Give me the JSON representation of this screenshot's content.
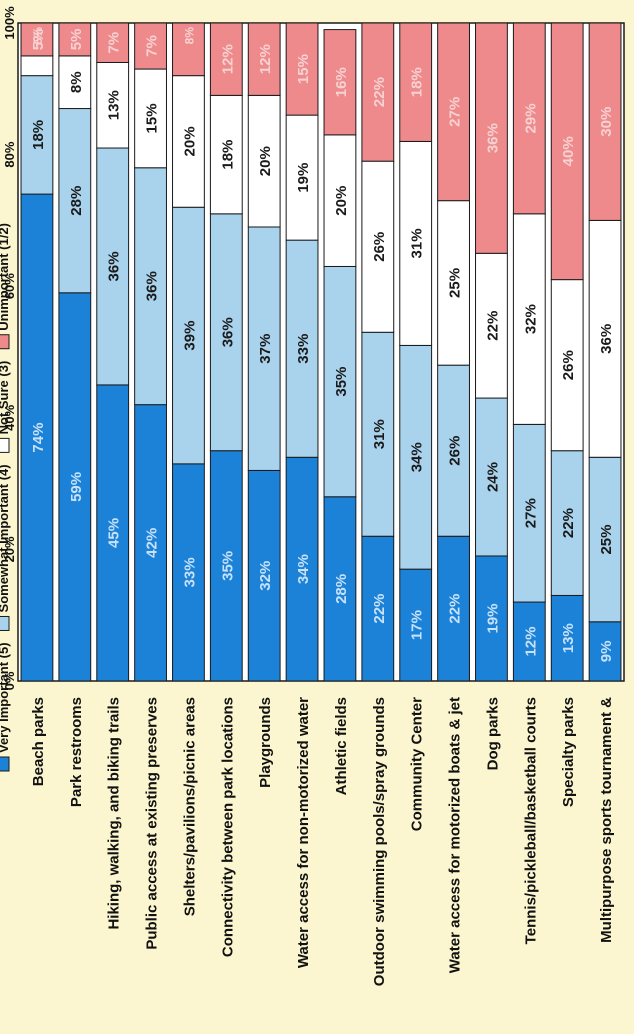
{
  "chart_data": {
    "type": "bar",
    "stacked": true,
    "orientation": "horizontal",
    "x_unit": "percent",
    "xlim": [
      0,
      100
    ],
    "x_ticks": [
      "0%",
      "20%",
      "40%",
      "60%",
      "80%",
      "100%"
    ],
    "categories": [
      "Beach parks",
      "Park restrooms",
      "Hiking, walking, and biking trails",
      "Public access at existing preserves",
      "Shelters/pavilions/picnic areas",
      "Connectivity between park locations",
      "Playgrounds",
      "Water access for non-motorized water",
      "Athletic fields",
      "Outdoor swimming pools/spray grounds",
      "Community Center",
      "Water access for motorized boats & jet",
      "Dog parks",
      "Tennis/pickleball/basketball courts",
      "Specialty parks",
      "Multipurpose sports tournament &"
    ],
    "series": [
      {
        "name": "Very Important (5)",
        "color": "#1c82d8",
        "label_color": "#c7e2fa",
        "values": [
          74,
          59,
          45,
          42,
          33,
          35,
          32,
          34,
          28,
          22,
          17,
          22,
          19,
          12,
          13,
          9
        ],
        "labels": [
          "74%",
          "59%",
          "45%",
          "42%",
          "33%",
          "35%",
          "32%",
          "34%",
          "28%",
          "22%",
          "17%",
          "22%",
          "19%",
          "12%",
          "13%",
          "9%"
        ]
      },
      {
        "name": "Somewhat Important (4)",
        "color": "#a9d2ec",
        "label_color": "#1a1a1a",
        "values": [
          18,
          28,
          36,
          36,
          39,
          36,
          37,
          33,
          35,
          31,
          34,
          26,
          24,
          27,
          22,
          25
        ],
        "labels": [
          "18%",
          "28%",
          "36%",
          "36%",
          "39%",
          "36%",
          "37%",
          "33%",
          "35%",
          "31%",
          "34%",
          "26%",
          "24%",
          "27%",
          "22%",
          "25%"
        ]
      },
      {
        "name": "Not Sure (3)",
        "color": "#ffffff",
        "label_color": "#1a1a1a",
        "values": [
          3,
          8,
          13,
          15,
          20,
          18,
          20,
          19,
          20,
          26,
          31,
          25,
          22,
          32,
          26,
          36
        ],
        "labels": [
          "",
          "8%",
          "13%",
          "15%",
          "20%",
          "18%",
          "20%",
          "19%",
          "20%",
          "26%",
          "31%",
          "25%",
          "22%",
          "32%",
          "26%",
          "36%"
        ]
      },
      {
        "name": "Unimportant (1/2)",
        "color": "#ee8a8c",
        "label_color": "#f6d2d2",
        "values": [
          5,
          5,
          7,
          7,
          8,
          12,
          12,
          15,
          16,
          22,
          18,
          27,
          36,
          29,
          40,
          30
        ],
        "labels": [
          "5%",
          "5%",
          "7%",
          "7%",
          "",
          "12%",
          "12%",
          "15%",
          "16%",
          "22%",
          "18%",
          "27%",
          "36%",
          "29%",
          "40%",
          "30%"
        ]
      }
    ],
    "extra_labels": [
      {
        "row": 0,
        "text": "5%"
      },
      {
        "row": 4,
        "text": "8%"
      }
    ],
    "legend_position": "bottom",
    "legend": [
      "Very Important (5)",
      "Somewhat Important (4)",
      "Not Sure (3)",
      "Unimportant (1/2)"
    ]
  }
}
